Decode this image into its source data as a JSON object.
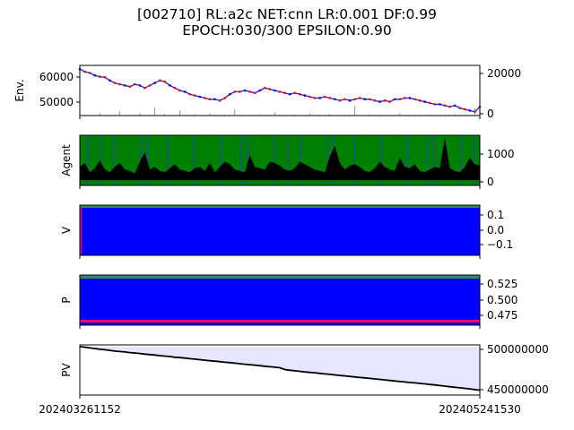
{
  "title": {
    "line1": "[002710] RL:a2c NET:cnn LR:0.001 DF:0.99",
    "line2": "EPOCH:030/300 EPSILON:0.90"
  },
  "colors": {
    "price": "#1f1fcc",
    "buy": "#ff0000",
    "sell": "#0000ff",
    "volume": "#6b6bff",
    "agent_hold": "#008000",
    "agent_sell": "#1f4fa0",
    "v_fill": "#0000ff",
    "p_top": "#2e8b57",
    "p_bottom": "#ff0066",
    "pv_fill": "#e6e6ff",
    "pv_line": "#000000"
  },
  "chart_data": [
    {
      "type": "line",
      "panel": "env",
      "ylabel": "Env.",
      "yticks_left": [
        "60000",
        "50000"
      ],
      "yticks_right": [
        "20000",
        "0"
      ],
      "ylim": [
        44500,
        64500
      ],
      "ylim_right": [
        0,
        24000
      ],
      "x_start": "202403261152",
      "x_end": "202405241530",
      "series": [
        {
          "values": [
            63000,
            62000,
            61500,
            60500,
            60000,
            59800,
            58500,
            57500,
            57000,
            56500,
            56000,
            57000,
            56500,
            55500,
            56500,
            57500,
            58500,
            58000,
            56500,
            55500,
            54500,
            54000,
            53000,
            52500,
            52000,
            51500,
            51000,
            51000,
            50500,
            51500,
            53000,
            54000,
            54000,
            54500,
            54000,
            53500,
            54500,
            55500,
            55000,
            54500,
            54000,
            53500,
            53000,
            53500,
            53000,
            52500,
            52000,
            51500,
            51500,
            52000,
            51500,
            51000,
            50500,
            51000,
            50500,
            51000,
            51500,
            51000,
            51000,
            50500,
            50000,
            50500,
            50000,
            51000,
            51000,
            51500,
            51500,
            51000,
            50500,
            50000,
            49500,
            49000,
            49000,
            48500,
            48000,
            48500,
            47500,
            47000,
            46500,
            46000,
            48000
          ]
        }
      ],
      "volume": [
        700,
        500,
        300,
        300,
        1200,
        300,
        300,
        300,
        2000,
        300,
        300,
        500,
        1100,
        300,
        500,
        4000,
        300,
        800,
        300,
        300,
        2500,
        300,
        300,
        700,
        300,
        300,
        900,
        300,
        300,
        500,
        300,
        3000,
        300,
        400,
        300,
        300,
        600,
        300,
        300,
        1400,
        300,
        300,
        300,
        500,
        300,
        300,
        900,
        300,
        300,
        300,
        700,
        300,
        300,
        300,
        300,
        4500,
        300,
        300,
        600,
        300,
        300,
        300,
        300,
        300,
        1000,
        300,
        300,
        300,
        300,
        300,
        500,
        300,
        300,
        300,
        300,
        700,
        300,
        300,
        300,
        3500,
        300
      ]
    },
    {
      "type": "area",
      "panel": "agent",
      "ylabel": "Agent",
      "yticks_right": [
        "1000",
        "0"
      ],
      "ylim": [
        -200,
        1700
      ],
      "values": [
        500,
        650,
        300,
        450,
        750,
        400,
        300,
        500,
        650,
        400,
        350,
        250,
        700,
        1050,
        400,
        500,
        350,
        300,
        450,
        600,
        400,
        350,
        300,
        450,
        500,
        350,
        650,
        300,
        500,
        700,
        600,
        400,
        350,
        300,
        950,
        500,
        450,
        400,
        700,
        650,
        550,
        400,
        350,
        450,
        700,
        600,
        500,
        400,
        350,
        300,
        900,
        1300,
        650,
        400,
        550,
        600,
        500,
        350,
        300,
        450,
        700,
        500,
        400,
        350,
        850,
        500,
        450,
        600,
        350,
        300,
        400,
        500,
        450,
        1600,
        450,
        350,
        300,
        500,
        850,
        600,
        550
      ]
    },
    {
      "type": "area",
      "panel": "V",
      "ylabel": "V",
      "yticks_right": [
        "0.1",
        "0.0",
        "−0.1"
      ],
      "ylim": [
        -0.17,
        0.17
      ],
      "value_range": [
        -0.15,
        0.15
      ]
    },
    {
      "type": "area",
      "panel": "P",
      "ylabel": "P",
      "yticks_right": [
        "0.525",
        "0.500",
        "0.475"
      ],
      "ylim": [
        0.458,
        0.54
      ],
      "series": [
        {
          "value": 0.535
        },
        {
          "value": 0.462
        }
      ]
    },
    {
      "type": "line",
      "panel": "PV",
      "ylabel": "PV",
      "yticks_right": [
        "500000000",
        "450000000"
      ],
      "ylim": [
        445000000,
        502000000
      ],
      "values": [
        500000000,
        499500000,
        498500000,
        497800000,
        497000000,
        496500000,
        495800000,
        495000000,
        494500000,
        494000000,
        493200000,
        492800000,
        492200000,
        491500000,
        491000000,
        490500000,
        489800000,
        489300000,
        488800000,
        488000000,
        487500000,
        487000000,
        486300000,
        485800000,
        485200000,
        484600000,
        484000000,
        483500000,
        483000000,
        482300000,
        481800000,
        481200000,
        480600000,
        480000000,
        479500000,
        479000000,
        478400000,
        477800000,
        477200000,
        476700000,
        476000000,
        474000000,
        473200000,
        472600000,
        472000000,
        471300000,
        470800000,
        470300000,
        469600000,
        469000000,
        468500000,
        467900000,
        467300000,
        466800000,
        466200000,
        465600000,
        465000000,
        464500000,
        463900000,
        463300000,
        462800000,
        462200000,
        461600000,
        461000000,
        460400000,
        459900000,
        459300000,
        458800000,
        458200000,
        457700000,
        457000000,
        456500000,
        455800000,
        455200000,
        454500000,
        453900000,
        453200000,
        452600000,
        452000000,
        451200000,
        450500000
      ]
    }
  ]
}
